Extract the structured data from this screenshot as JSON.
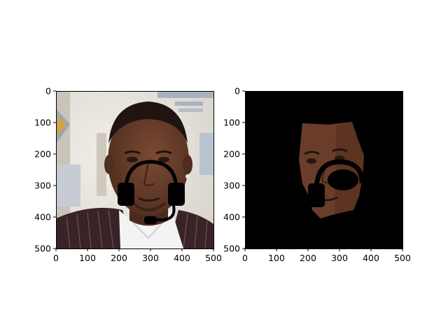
{
  "chart_data": [
    {
      "type": "image",
      "panel": "left",
      "image_content": "photo of a man's face with a drawn black headset overlay",
      "xlim": [
        0,
        500
      ],
      "ylim": [
        500,
        0
      ],
      "x_ticks": [
        0,
        100,
        200,
        300,
        400,
        500
      ],
      "y_ticks": [
        0,
        100,
        200,
        300,
        400,
        500
      ],
      "x_tick_labels": [
        "0",
        "100",
        "200",
        "300",
        "400",
        "500"
      ],
      "y_tick_labels": [
        "0",
        "100",
        "200",
        "300",
        "400",
        "500"
      ],
      "title": "",
      "xlabel": "",
      "ylabel": "",
      "colors": {
        "background_light": "#e9e5df",
        "skin": "#5b3525",
        "hair": "#1f140f",
        "suit": "#3a2326",
        "shirt": "#f3f3f3",
        "headset": "#000000"
      }
    },
    {
      "type": "image",
      "panel": "right",
      "image_content": "segmented face on black background with headset overlay",
      "xlim": [
        0,
        500
      ],
      "ylim": [
        500,
        0
      ],
      "x_ticks": [
        0,
        100,
        200,
        300,
        400,
        500
      ],
      "y_ticks": [
        0,
        100,
        200,
        300,
        400,
        500
      ],
      "x_tick_labels": [
        "0",
        "100",
        "200",
        "300",
        "400",
        "500"
      ],
      "y_tick_labels": [
        "0",
        "100",
        "200",
        "300",
        "400",
        "500"
      ],
      "title": "",
      "xlabel": "",
      "ylabel": "",
      "colors": {
        "background": "#000000",
        "skin": "#6a3d2a",
        "headset": "#000000"
      }
    }
  ]
}
